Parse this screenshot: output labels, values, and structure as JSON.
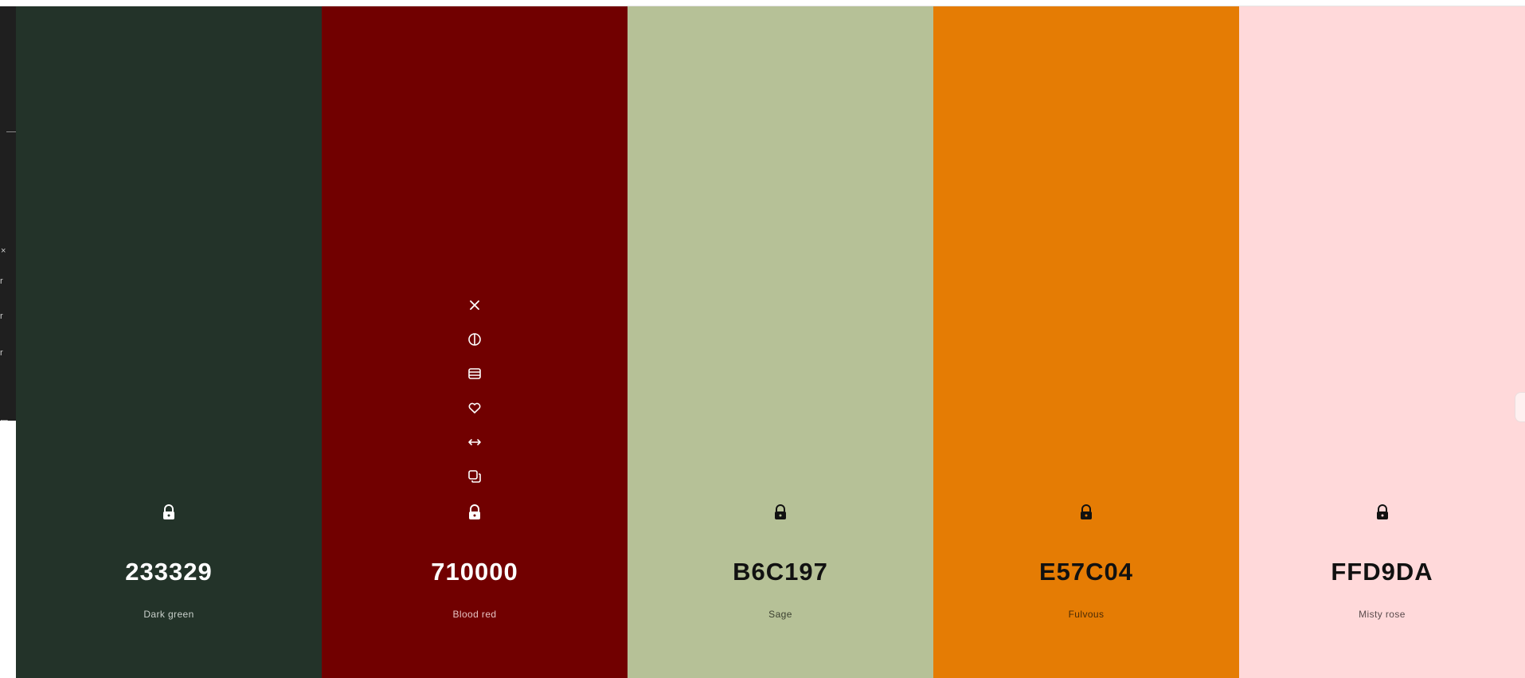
{
  "palette": {
    "swatches": [
      {
        "hex": "233329",
        "name": "Dark green",
        "bg": "#233329",
        "fg": "#ffffff",
        "sub": "#c9d0cb"
      },
      {
        "hex": "710000",
        "name": "Blood red",
        "bg": "#710000",
        "fg": "#ffffff",
        "sub": "#e6c2c2"
      },
      {
        "hex": "B6C197",
        "name": "Sage",
        "bg": "#B6C197",
        "fg": "#111111",
        "sub": "#3b4030"
      },
      {
        "hex": "E57C04",
        "name": "Fulvous",
        "bg": "#E57C04",
        "fg": "#111111",
        "sub": "#4a2a05"
      },
      {
        "hex": "FFD9DA",
        "name": "Misty rose",
        "bg": "#FFD9DA",
        "fg": "#111111",
        "sub": "#5a4b4c"
      }
    ],
    "hover_tools": [
      "close-icon",
      "contrast-icon",
      "shades-icon",
      "heart-icon",
      "drag-arrows-icon",
      "copy-icon"
    ],
    "lock_icon": "lock-icon"
  }
}
